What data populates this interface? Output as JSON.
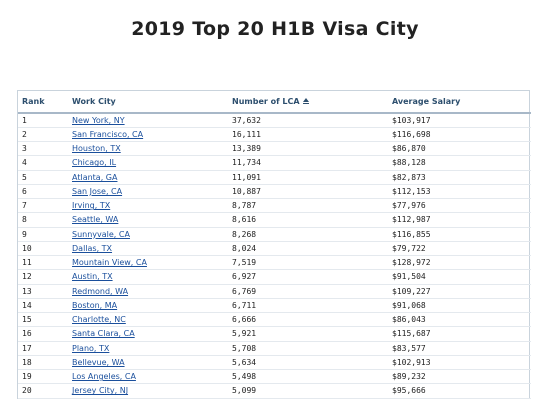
{
  "title": "2019 Top 20 H1B Visa City",
  "table": {
    "headers": {
      "rank": "Rank",
      "city": "Work City",
      "lca": "Number of LCA",
      "salary": "Average Salary"
    },
    "sort_icon": "sort-ascending-icon",
    "rows": [
      {
        "rank": "1",
        "city": "New York, NY",
        "lca": "37,632",
        "salary": "$103,917"
      },
      {
        "rank": "2",
        "city": "San Francisco, CA",
        "lca": "16,111",
        "salary": "$116,698"
      },
      {
        "rank": "3",
        "city": "Houston, TX",
        "lca": "13,389",
        "salary": "$86,870"
      },
      {
        "rank": "4",
        "city": "Chicago, IL",
        "lca": "11,734",
        "salary": "$88,128"
      },
      {
        "rank": "5",
        "city": "Atlanta, GA",
        "lca": "11,091",
        "salary": "$82,873"
      },
      {
        "rank": "6",
        "city": "San Jose, CA",
        "lca": "10,887",
        "salary": "$112,153"
      },
      {
        "rank": "7",
        "city": "Irving, TX",
        "lca": "8,787",
        "salary": "$77,976"
      },
      {
        "rank": "8",
        "city": "Seattle, WA",
        "lca": "8,616",
        "salary": "$112,987"
      },
      {
        "rank": "9",
        "city": "Sunnyvale, CA",
        "lca": "8,268",
        "salary": "$116,855"
      },
      {
        "rank": "10",
        "city": "Dallas, TX",
        "lca": "8,024",
        "salary": "$79,722"
      },
      {
        "rank": "11",
        "city": "Mountain View, CA",
        "lca": "7,519",
        "salary": "$128,972"
      },
      {
        "rank": "12",
        "city": "Austin, TX",
        "lca": "6,927",
        "salary": "$91,504"
      },
      {
        "rank": "13",
        "city": "Redmond, WA",
        "lca": "6,769",
        "salary": "$109,227"
      },
      {
        "rank": "14",
        "city": "Boston, MA",
        "lca": "6,711",
        "salary": "$91,068"
      },
      {
        "rank": "15",
        "city": "Charlotte, NC",
        "lca": "6,666",
        "salary": "$86,043"
      },
      {
        "rank": "16",
        "city": "Santa Clara, CA",
        "lca": "5,921",
        "salary": "$115,687"
      },
      {
        "rank": "17",
        "city": "Plano, TX",
        "lca": "5,708",
        "salary": "$83,577"
      },
      {
        "rank": "18",
        "city": "Bellevue, WA",
        "lca": "5,634",
        "salary": "$102,913"
      },
      {
        "rank": "19",
        "city": "Los Angeles, CA",
        "lca": "5,498",
        "salary": "$89,232"
      },
      {
        "rank": "20",
        "city": "Jersey City, NJ",
        "lca": "5,099",
        "salary": "$95,666"
      }
    ]
  },
  "colors": {
    "header_text": "#2d4f6e",
    "link": "#1a4f9c",
    "border": "#c9d3dc"
  }
}
